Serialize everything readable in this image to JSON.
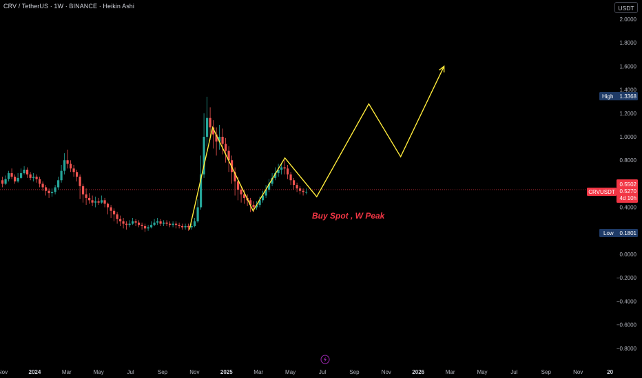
{
  "header": {
    "title": "CRV / TetherUS · 1W · BINANCE · Heikin Ashi"
  },
  "currency_button": {
    "label": "USDT"
  },
  "chart_data": {
    "type": "candlestick",
    "y_ticks": [
      "2.0000",
      "1.8000",
      "1.6000",
      "1.4000",
      "1.2000",
      "1.0000",
      "0.8000",
      "0.4000",
      "0.4000",
      "0.0000",
      "−0.2000",
      "−0.4000",
      "−0.6000",
      "−0.8000"
    ],
    "y_tick_values": [
      2.0,
      1.8,
      1.6,
      1.4,
      1.2,
      1.0,
      0.8,
      0.4,
      0.2,
      0.0,
      -0.2,
      -0.4,
      -0.6,
      -0.8
    ],
    "x_ticks": [
      {
        "label": "Nov",
        "bold": false
      },
      {
        "label": "2024",
        "bold": true
      },
      {
        "label": "Mar",
        "bold": false
      },
      {
        "label": "May",
        "bold": false
      },
      {
        "label": "Jul",
        "bold": false
      },
      {
        "label": "Sep",
        "bold": false
      },
      {
        "label": "Nov",
        "bold": false
      },
      {
        "label": "2025",
        "bold": true
      },
      {
        "label": "Mar",
        "bold": false
      },
      {
        "label": "May",
        "bold": false
      },
      {
        "label": "Jul",
        "bold": false
      },
      {
        "label": "Sep",
        "bold": false
      },
      {
        "label": "Nov",
        "bold": false
      },
      {
        "label": "2026",
        "bold": true
      },
      {
        "label": "Mar",
        "bold": false
      },
      {
        "label": "May",
        "bold": false
      },
      {
        "label": "Jul",
        "bold": false
      },
      {
        "label": "Sep",
        "bold": false
      },
      {
        "label": "Nov",
        "bold": false
      },
      {
        "label": "20",
        "bold": true
      }
    ],
    "ylim": [
      -0.85,
      2.05
    ],
    "high": {
      "label": "High",
      "value": "1.3368"
    },
    "low": {
      "label": "Low",
      "value": "0.1801"
    },
    "current": {
      "symbol": "CRVUSDT",
      "price": "0.5502",
      "ha_price": "0.5270",
      "countdown": "4d 10h",
      "value": 0.5502
    },
    "annotation": "Buy Spot , W Peak",
    "projection": [
      {
        "week": 0,
        "price": 0.21
      },
      {
        "week": 8,
        "price": 1.08
      },
      {
        "week": 22,
        "price": 0.37
      },
      {
        "week": 33,
        "price": 0.82
      },
      {
        "week": 44,
        "price": 0.49
      },
      {
        "week": 62,
        "price": 1.28
      },
      {
        "week": 73,
        "price": 0.83
      },
      {
        "week": 88,
        "price": 1.6
      }
    ],
    "candles": [
      [
        0.63,
        0.6,
        0.66,
        0.57
      ],
      [
        0.6,
        0.64,
        0.67,
        0.59
      ],
      [
        0.64,
        0.69,
        0.71,
        0.62
      ],
      [
        0.69,
        0.66,
        0.73,
        0.64
      ],
      [
        0.66,
        0.62,
        0.68,
        0.6
      ],
      [
        0.62,
        0.65,
        0.69,
        0.61
      ],
      [
        0.65,
        0.69,
        0.73,
        0.64
      ],
      [
        0.69,
        0.72,
        0.75,
        0.68
      ],
      [
        0.72,
        0.68,
        0.74,
        0.65
      ],
      [
        0.68,
        0.65,
        0.7,
        0.63
      ],
      [
        0.65,
        0.66,
        0.69,
        0.62
      ],
      [
        0.66,
        0.64,
        0.68,
        0.61
      ],
      [
        0.64,
        0.6,
        0.66,
        0.57
      ],
      [
        0.6,
        0.57,
        0.62,
        0.54
      ],
      [
        0.57,
        0.54,
        0.59,
        0.5
      ],
      [
        0.54,
        0.52,
        0.56,
        0.48
      ],
      [
        0.52,
        0.53,
        0.56,
        0.49
      ],
      [
        0.53,
        0.57,
        0.59,
        0.51
      ],
      [
        0.57,
        0.63,
        0.66,
        0.55
      ],
      [
        0.63,
        0.71,
        0.76,
        0.61
      ],
      [
        0.71,
        0.8,
        0.86,
        0.68
      ],
      [
        0.8,
        0.77,
        0.89,
        0.73
      ],
      [
        0.77,
        0.73,
        0.8,
        0.7
      ],
      [
        0.73,
        0.7,
        0.76,
        0.66
      ],
      [
        0.7,
        0.66,
        0.72,
        0.62
      ],
      [
        0.66,
        0.58,
        0.68,
        0.47
      ],
      [
        0.58,
        0.51,
        0.6,
        0.44
      ],
      [
        0.51,
        0.48,
        0.56,
        0.42
      ],
      [
        0.48,
        0.46,
        0.52,
        0.43
      ],
      [
        0.46,
        0.44,
        0.5,
        0.41
      ],
      [
        0.44,
        0.45,
        0.49,
        0.4
      ],
      [
        0.45,
        0.44,
        0.48,
        0.42
      ],
      [
        0.44,
        0.46,
        0.5,
        0.43
      ],
      [
        0.46,
        0.43,
        0.48,
        0.4
      ],
      [
        0.43,
        0.4,
        0.44,
        0.34
      ],
      [
        0.4,
        0.37,
        0.42,
        0.31
      ],
      [
        0.37,
        0.34,
        0.39,
        0.28
      ],
      [
        0.34,
        0.3,
        0.36,
        0.26
      ],
      [
        0.3,
        0.28,
        0.33,
        0.24
      ],
      [
        0.28,
        0.26,
        0.31,
        0.22
      ],
      [
        0.26,
        0.25,
        0.28,
        0.21
      ],
      [
        0.25,
        0.26,
        0.29,
        0.23
      ],
      [
        0.26,
        0.28,
        0.31,
        0.25
      ],
      [
        0.28,
        0.27,
        0.3,
        0.24
      ],
      [
        0.27,
        0.25,
        0.29,
        0.23
      ],
      [
        0.25,
        0.24,
        0.27,
        0.21
      ],
      [
        0.24,
        0.22,
        0.26,
        0.19
      ],
      [
        0.22,
        0.23,
        0.25,
        0.2
      ],
      [
        0.23,
        0.25,
        0.28,
        0.22
      ],
      [
        0.25,
        0.27,
        0.3,
        0.24
      ],
      [
        0.27,
        0.28,
        0.31,
        0.25
      ],
      [
        0.28,
        0.26,
        0.3,
        0.24
      ],
      [
        0.26,
        0.27,
        0.29,
        0.24
      ],
      [
        0.27,
        0.26,
        0.29,
        0.24
      ],
      [
        0.26,
        0.25,
        0.28,
        0.23
      ],
      [
        0.25,
        0.26,
        0.28,
        0.23
      ],
      [
        0.26,
        0.25,
        0.28,
        0.22
      ],
      [
        0.25,
        0.24,
        0.27,
        0.22
      ],
      [
        0.24,
        0.23,
        0.26,
        0.21
      ],
      [
        0.23,
        0.24,
        0.26,
        0.21
      ],
      [
        0.24,
        0.23,
        0.26,
        0.2
      ],
      [
        0.23,
        0.24,
        0.26,
        0.21
      ],
      [
        0.24,
        0.28,
        0.31,
        0.23
      ],
      [
        0.28,
        0.4,
        0.47,
        0.27
      ],
      [
        0.4,
        0.68,
        0.84,
        0.38
      ],
      [
        0.68,
        1.0,
        1.2,
        0.65
      ],
      [
        1.0,
        1.16,
        1.34,
        0.92
      ],
      [
        1.16,
        1.08,
        1.25,
        0.97
      ],
      [
        1.08,
        1.02,
        1.14,
        0.9
      ],
      [
        1.02,
        0.96,
        1.08,
        0.84
      ],
      [
        0.96,
        1.0,
        1.1,
        0.89
      ],
      [
        1.0,
        0.94,
        1.07,
        0.85
      ],
      [
        0.94,
        0.88,
        0.99,
        0.78
      ],
      [
        0.88,
        0.8,
        0.92,
        0.7
      ],
      [
        0.8,
        0.7,
        0.84,
        0.6
      ],
      [
        0.7,
        0.62,
        0.74,
        0.5
      ],
      [
        0.62,
        0.55,
        0.66,
        0.46
      ],
      [
        0.55,
        0.51,
        0.58,
        0.44
      ],
      [
        0.51,
        0.48,
        0.55,
        0.43
      ],
      [
        0.48,
        0.46,
        0.51,
        0.41
      ],
      [
        0.46,
        0.42,
        0.48,
        0.36
      ],
      [
        0.42,
        0.4,
        0.45,
        0.36
      ],
      [
        0.4,
        0.42,
        0.45,
        0.38
      ],
      [
        0.42,
        0.46,
        0.49,
        0.4
      ],
      [
        0.46,
        0.5,
        0.54,
        0.44
      ],
      [
        0.5,
        0.55,
        0.59,
        0.48
      ],
      [
        0.55,
        0.6,
        0.64,
        0.53
      ],
      [
        0.6,
        0.65,
        0.69,
        0.58
      ],
      [
        0.65,
        0.69,
        0.74,
        0.63
      ],
      [
        0.69,
        0.72,
        0.77,
        0.66
      ],
      [
        0.72,
        0.74,
        0.78,
        0.68
      ],
      [
        0.74,
        0.73,
        0.8,
        0.68
      ],
      [
        0.73,
        0.68,
        0.76,
        0.64
      ],
      [
        0.68,
        0.63,
        0.7,
        0.59
      ],
      [
        0.63,
        0.59,
        0.65,
        0.55
      ],
      [
        0.59,
        0.56,
        0.61,
        0.53
      ],
      [
        0.56,
        0.54,
        0.58,
        0.51
      ],
      [
        0.54,
        0.53,
        0.56,
        0.5
      ],
      [
        0.53,
        0.53,
        0.56,
        0.51
      ]
    ]
  },
  "colors": {
    "up": "#26a69a",
    "down": "#ef5350",
    "projection": "#ffeb3b",
    "badge_blue": "#1e3a66",
    "badge_red": "#f23645",
    "annotation": "#f23645"
  },
  "footer": {
    "bolt_icon": "lightning-icon"
  }
}
